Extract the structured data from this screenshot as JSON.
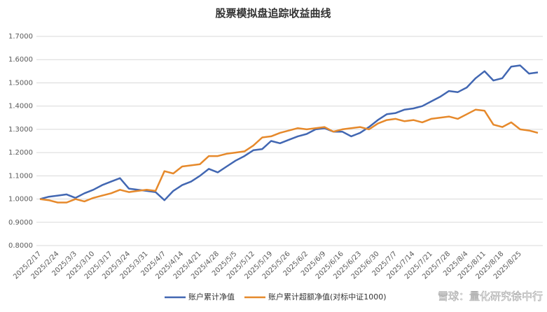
{
  "chart_data": {
    "type": "line",
    "title": "股票模拟盘追踪收益曲线",
    "annotation": "雪球：量化研究徐中行",
    "categories": [
      "2025/2/17",
      null,
      "2025/2/24",
      null,
      "2025/3/3",
      null,
      "2025/3/10",
      null,
      "2025/3/17",
      null,
      "2025/3/24",
      null,
      "2025/3/31",
      null,
      "2025/4/7",
      null,
      "2025/4/14",
      null,
      "2025/4/21",
      null,
      "2025/4/28",
      null,
      "2025/5/5",
      null,
      "2025/5/12",
      null,
      "2025/5/19",
      null,
      "2025/5/26",
      null,
      "2025/6/2",
      null,
      "2025/6/9",
      null,
      "2025/6/16",
      null,
      "2025/6/23",
      null,
      "2025/6/30",
      null,
      "2025/7/7",
      null,
      "2025/7/14",
      null,
      "2025/7/21",
      null,
      "2025/7/28",
      null,
      "2025/8/4",
      null,
      "2025/8/11",
      null,
      "2025/8/18",
      null,
      "2025/8/25",
      null,
      null
    ],
    "series": [
      {
        "name": "账户累计净值",
        "color": "#4267b2",
        "values": [
          1.0,
          1.01,
          1.015,
          1.02,
          1.005,
          1.025,
          1.04,
          1.06,
          1.075,
          1.09,
          1.045,
          1.04,
          1.035,
          1.03,
          0.995,
          1.035,
          1.06,
          1.075,
          1.1,
          1.13,
          1.115,
          1.14,
          1.165,
          1.185,
          1.21,
          1.215,
          1.25,
          1.24,
          1.255,
          1.27,
          1.28,
          1.3,
          1.305,
          1.29,
          1.29,
          1.27,
          1.285,
          1.31,
          1.34,
          1.365,
          1.37,
          1.385,
          1.39,
          1.4,
          1.42,
          1.44,
          1.465,
          1.46,
          1.48,
          1.52,
          1.55,
          1.51,
          1.52,
          1.57,
          1.575,
          1.54,
          1.545
        ]
      },
      {
        "name": "账户累计超额净值(对标中证1000)",
        "color": "#e6892b",
        "values": [
          1.0,
          0.995,
          0.985,
          0.985,
          1.0,
          0.99,
          1.005,
          1.015,
          1.025,
          1.04,
          1.03,
          1.035,
          1.04,
          1.035,
          1.12,
          1.11,
          1.14,
          1.145,
          1.15,
          1.185,
          1.185,
          1.195,
          1.2,
          1.205,
          1.23,
          1.265,
          1.27,
          1.285,
          1.295,
          1.305,
          1.3,
          1.305,
          1.31,
          1.29,
          1.3,
          1.305,
          1.31,
          1.3,
          1.325,
          1.34,
          1.345,
          1.335,
          1.34,
          1.33,
          1.345,
          1.35,
          1.355,
          1.345,
          1.365,
          1.385,
          1.38,
          1.32,
          1.31,
          1.33,
          1.3,
          1.295,
          1.285
        ]
      }
    ],
    "ylim": [
      0.8,
      1.7
    ],
    "yticks": [
      {
        "value": 0.8,
        "label": "0.8000"
      },
      {
        "value": 0.9,
        "label": "0.9000"
      },
      {
        "value": 1.0,
        "label": "1.0000"
      },
      {
        "value": 1.1,
        "label": "1.1000"
      },
      {
        "value": 1.2,
        "label": "1.2000"
      },
      {
        "value": 1.3,
        "label": "1.3000"
      },
      {
        "value": 1.4,
        "label": "1.4000"
      },
      {
        "value": 1.5,
        "label": "1.5000"
      },
      {
        "value": 1.6,
        "label": "1.6000"
      },
      {
        "value": 1.7,
        "label": "1.7000"
      }
    ],
    "grid": true,
    "legend": "bottom"
  }
}
